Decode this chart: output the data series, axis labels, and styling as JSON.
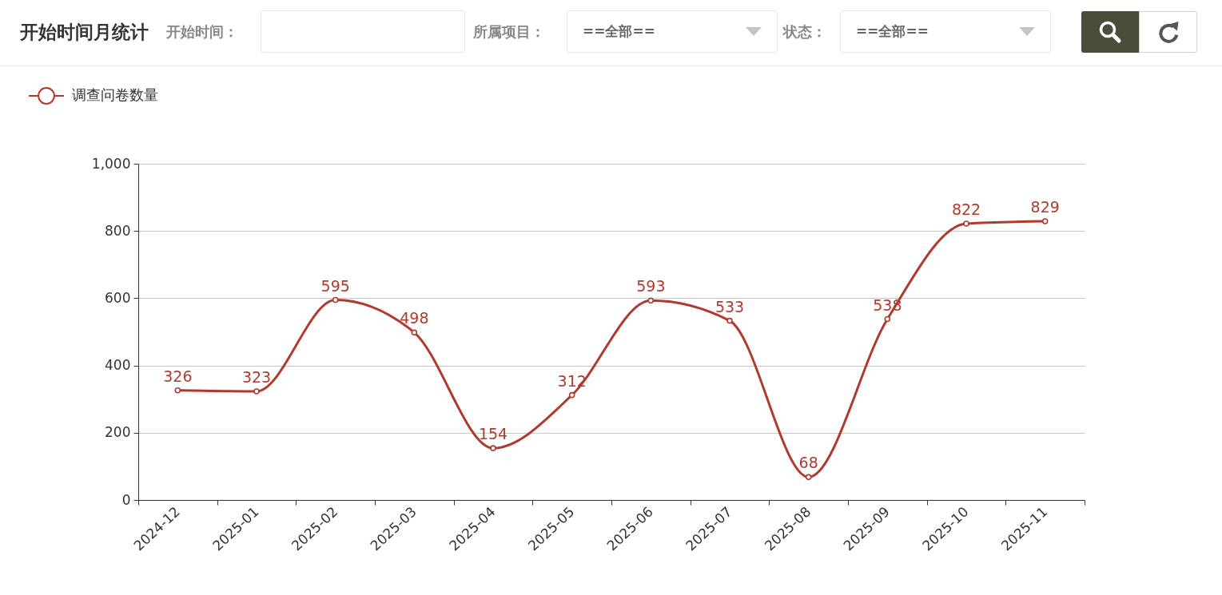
{
  "chart_data": {
    "type": "line",
    "title": "开始时间月统计",
    "annotations": [
      "开始时间：",
      "所属项目：",
      "==全部==",
      "状态：",
      "==全部=="
    ],
    "categories": [
      "2024-12",
      "2025-01",
      "2025-02",
      "2025-03",
      "2025-04",
      "2025-05",
      "2025-06",
      "2025-07",
      "2025-08",
      "2025-09",
      "2025-10",
      "2025-11"
    ],
    "series": [
      {
        "name": "调查问卷数量",
        "color": "#b03a2e",
        "values": [
          326,
          323,
          595,
          498,
          154,
          312,
          593,
          533,
          68,
          538,
          822,
          829
        ]
      }
    ],
    "ylim": [
      0,
      1000
    ],
    "yticks": [
      0,
      200,
      400,
      600,
      800,
      {
        "value": 1000,
        "label": "1,000"
      }
    ],
    "grid": "y",
    "legend": "top left",
    "marker": "circle",
    "line_style": "solid",
    "data_labels": true
  }
}
